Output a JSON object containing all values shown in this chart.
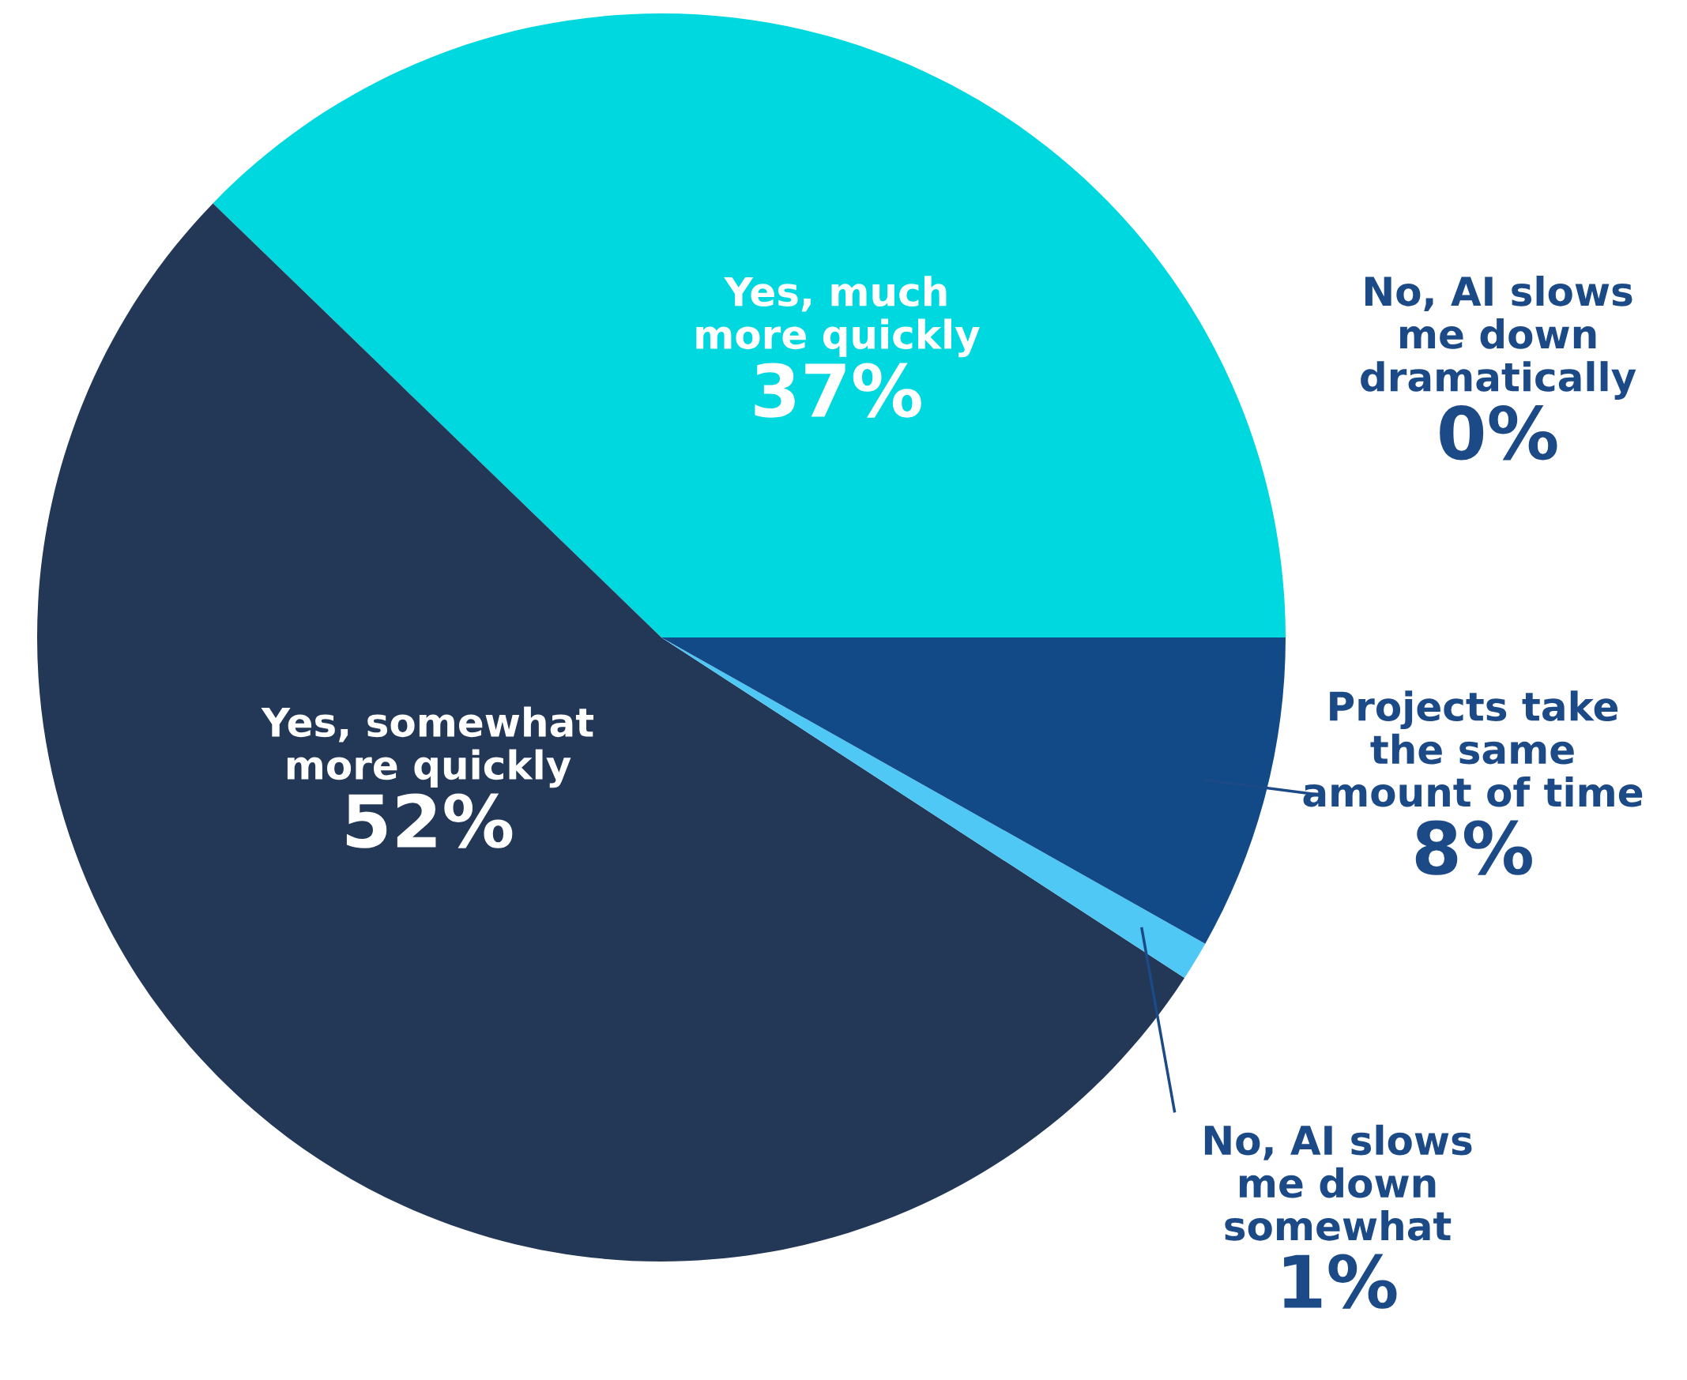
{
  "chart_data": {
    "type": "pie",
    "categories": [
      "Yes, much\nmore quickly",
      "Yes, somewhat\nmore quickly",
      "No, AI slows\nme down\nsomewhat",
      "Projects take\nthe same\namount of time",
      "No, AI slows\nme down\ndramatically"
    ],
    "values": [
      37,
      52,
      1,
      8,
      0
    ],
    "value_labels": [
      "37%",
      "52%",
      "1%",
      "8%",
      "0%"
    ],
    "colors": [
      "#00d8e0",
      "#233756",
      "#4fc8f5",
      "#114a87",
      "#114a87"
    ]
  }
}
